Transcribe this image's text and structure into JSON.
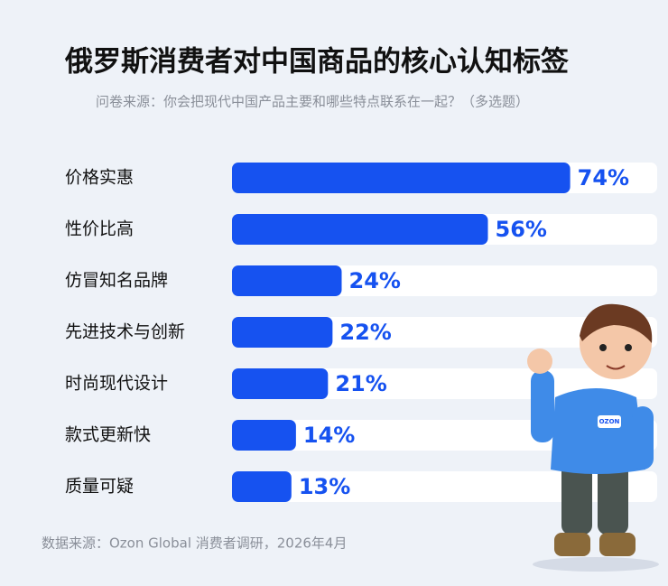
{
  "chart_data": {
    "type": "hbar",
    "title": "俄罗斯消费者对中国商品的核心认知标签",
    "subtitle": "问卷来源：你会把现代中国产品主要和哪些特点联系在一起？（多选题）",
    "categories": [
      "价格实惠",
      "性价比高",
      "仿冒知名品牌",
      "先进技术与创新",
      "时尚现代设计",
      "款式更新快",
      "质量可疑"
    ],
    "values": [
      74,
      56,
      24,
      22,
      21,
      14,
      13
    ],
    "value_labels": [
      "74%",
      "56%",
      "24%",
      "22%",
      "21%",
      "14%",
      "13%"
    ],
    "color": "#1652f0",
    "xlim": [
      0,
      80
    ],
    "source": "数据来源：Ozon Global 消费者调研，2026年4月"
  }
}
